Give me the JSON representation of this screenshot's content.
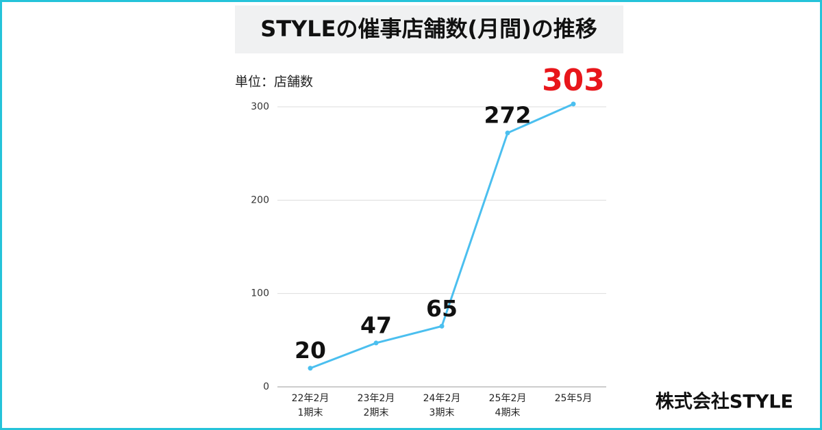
{
  "chart_data": {
    "type": "line",
    "title": "STYLEの催事店舗数(月間)の推移",
    "unit_label": "単位：店舗数",
    "categories": [
      [
        "22年2月",
        "1期末"
      ],
      [
        "23年2月",
        "2期末"
      ],
      [
        "24年2月",
        "3期末"
      ],
      [
        "25年2月",
        "4期末"
      ],
      [
        "25年5月"
      ]
    ],
    "values": [
      20,
      47,
      65,
      272,
      303
    ],
    "color": "#4bbfef",
    "label_colors": [
      "#111111",
      "#111111",
      "#111111",
      "#111111",
      "#e8161b"
    ],
    "ylim": [
      0,
      300
    ],
    "yticks": [
      0,
      100,
      200,
      300
    ],
    "grid": true,
    "footer": "株式会社STYLE"
  }
}
